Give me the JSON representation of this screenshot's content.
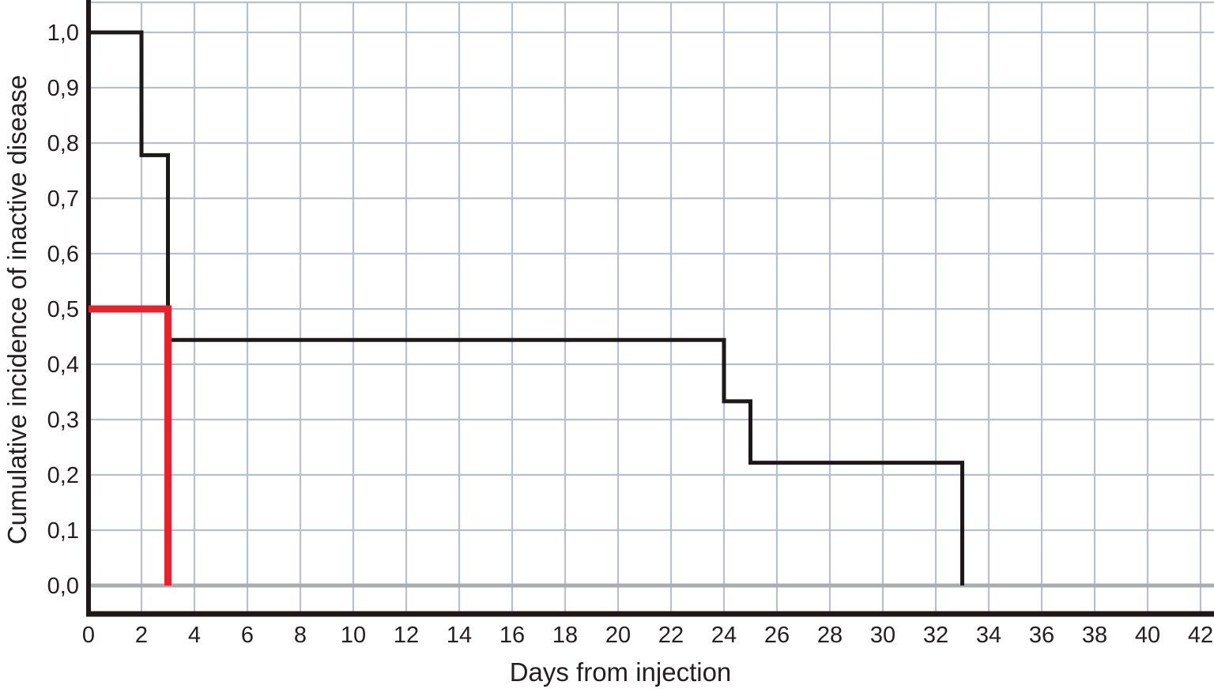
{
  "figure": {
    "kind": "cumulative incidence step plot",
    "background": "#ffffff"
  },
  "chart_data": {
    "type": "line",
    "line_style": "step",
    "title": "",
    "xlabel": "Days from injection",
    "ylabel": "Cumulative incidence of inactive disease",
    "xlim": [
      0,
      42
    ],
    "ylim": [
      0,
      1.05
    ],
    "grid": "on",
    "legend": "none",
    "decimal_separator": ",",
    "x_ticks": [
      0,
      2,
      4,
      6,
      8,
      10,
      12,
      14,
      16,
      18,
      20,
      22,
      24,
      26,
      28,
      30,
      32,
      34,
      36,
      38,
      40,
      42
    ],
    "x_tick_labels": [
      "0",
      "2",
      "4",
      "6",
      "8",
      "10",
      "12",
      "14",
      "16",
      "18",
      "20",
      "22",
      "24",
      "26",
      "28",
      "30",
      "32",
      "34",
      "36",
      "38",
      "40",
      "42"
    ],
    "y_ticks": [
      0,
      0.1,
      0.2,
      0.3,
      0.4,
      0.5,
      0.6,
      0.7,
      0.8,
      0.9,
      1.0
    ],
    "y_tick_labels": [
      "0,0",
      "0,1",
      "0,2",
      "0,3",
      "0,4",
      "0,5",
      "0,6",
      "0,7",
      "0,8",
      "0,9",
      "1,0"
    ],
    "series": [
      {
        "name": "black-step-curve",
        "color": "#1c1918",
        "stroke_width": 5,
        "points": [
          [
            0,
            1.0
          ],
          [
            2,
            1.0
          ],
          [
            2,
            0.778
          ],
          [
            3,
            0.778
          ],
          [
            3,
            0.444
          ],
          [
            24,
            0.444
          ],
          [
            24,
            0.333
          ],
          [
            25,
            0.333
          ],
          [
            25,
            0.222
          ],
          [
            33,
            0.222
          ],
          [
            33,
            0.0
          ]
        ]
      },
      {
        "name": "red-step-curve",
        "color": "#e8212b",
        "stroke_width": 9,
        "points": [
          [
            0,
            0.5
          ],
          [
            3,
            0.5
          ],
          [
            3,
            0.0
          ]
        ]
      }
    ],
    "style": {
      "grid_color": "#b9c0ca",
      "zero_line_color": "#a9adb2",
      "axis_color": "#1c1918",
      "text_color": "#231f20"
    }
  }
}
